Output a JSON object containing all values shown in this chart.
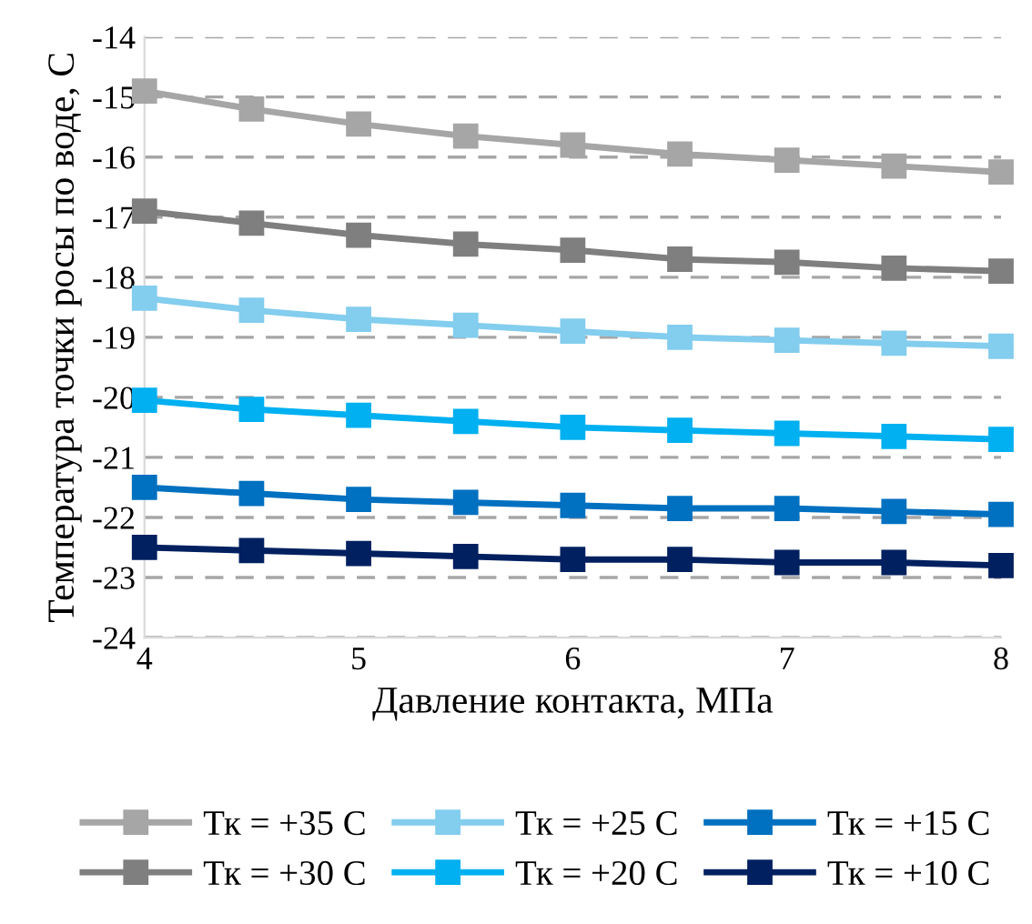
{
  "chart_data": {
    "type": "line",
    "xlabel": "Давление контакта, МПа",
    "ylabel": "Температура точки росы по воде, С",
    "x": [
      4,
      4.5,
      5,
      5.5,
      6,
      6.5,
      7,
      7.5,
      8
    ],
    "xlim": [
      4,
      8
    ],
    "xticks": [
      4,
      5,
      6,
      7,
      8
    ],
    "ylim": [
      -24,
      -14
    ],
    "yticks": [
      -24,
      -23,
      -22,
      -21,
      -20,
      -19,
      -18,
      -17,
      -16,
      -15,
      -14
    ],
    "grid": "y",
    "legend": "bottom",
    "marker": "square",
    "line_style": "solid",
    "series": [
      {
        "name": "Тк = +35 С",
        "color": "#a6a6a6",
        "values": [
          -14.9,
          -15.2,
          -15.45,
          -15.65,
          -15.8,
          -15.95,
          -16.05,
          -16.15,
          -16.25
        ]
      },
      {
        "name": "Тк = +30 С",
        "color": "#7f7f7f",
        "values": [
          -16.9,
          -17.1,
          -17.3,
          -17.45,
          -17.55,
          -17.7,
          -17.75,
          -17.85,
          -17.9
        ]
      },
      {
        "name": "Тк = +25 С",
        "color": "#83cdee",
        "values": [
          -18.35,
          -18.55,
          -18.7,
          -18.8,
          -18.9,
          -19.0,
          -19.05,
          -19.1,
          -19.15
        ]
      },
      {
        "name": "Тк = +20 С",
        "color": "#00b0f0",
        "values": [
          -20.05,
          -20.2,
          -20.3,
          -20.4,
          -20.5,
          -20.55,
          -20.6,
          -20.65,
          -20.7
        ]
      },
      {
        "name": "Тк = +15 С",
        "color": "#0070c0",
        "values": [
          -21.5,
          -21.6,
          -21.7,
          -21.75,
          -21.8,
          -21.85,
          -21.85,
          -21.9,
          -21.95
        ]
      },
      {
        "name": "Тк = +10 С",
        "color": "#002060",
        "values": [
          -22.5,
          -22.55,
          -22.6,
          -22.65,
          -22.7,
          -22.7,
          -22.75,
          -22.75,
          -22.8
        ]
      }
    ]
  }
}
